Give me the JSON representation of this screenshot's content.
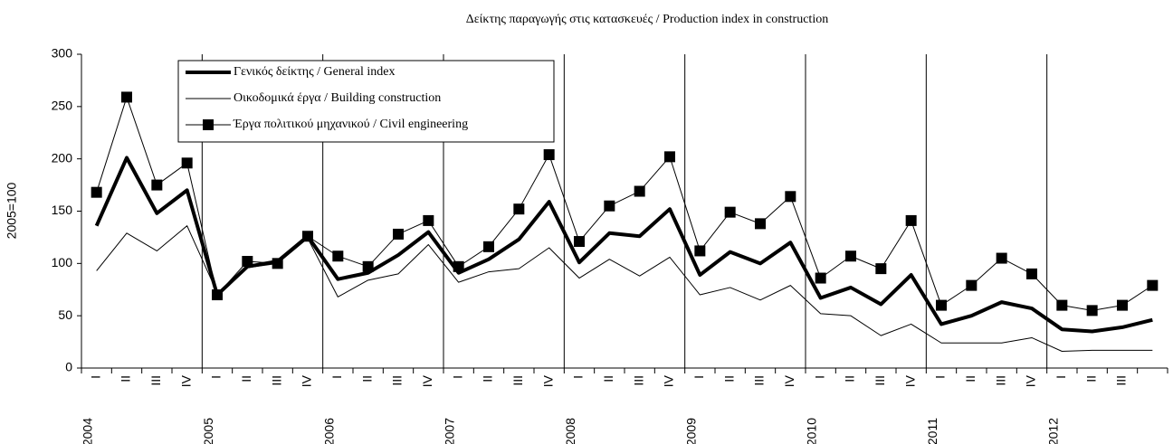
{
  "chart_data": {
    "type": "line",
    "title": "Δείκτης παραγωγής στις κατασκευές /  Production index in construction",
    "y_label": "2005=100",
    "categories": [
      "I",
      "II",
      "III",
      "IV",
      "I",
      "II",
      "III",
      "IV",
      "I",
      "II",
      "III",
      "IV",
      "I",
      "II",
      "III",
      "IV",
      "I",
      "II",
      "III",
      "IV",
      "I",
      "II",
      "III",
      "IV",
      "I",
      "II",
      "III",
      "IV",
      "I",
      "II",
      "III",
      "IV",
      "I",
      "II",
      "III",
      null
    ],
    "years": [
      "2004",
      "2005",
      "2006",
      "2007",
      "2008",
      "2009",
      "2010",
      "2011",
      "2012"
    ],
    "ylim": [
      0,
      300
    ],
    "yticks": [
      0,
      50,
      100,
      150,
      200,
      250,
      300
    ],
    "grid": false,
    "series": [
      {
        "name": "Γενικός δείκτης / General index",
        "color": "#000000",
        "line_width": 4,
        "marker": "none",
        "values": [
          136,
          201,
          148,
          170,
          70,
          97,
          102,
          126,
          85,
          91,
          108,
          130,
          91,
          104,
          123,
          159,
          101,
          129,
          126,
          152,
          89,
          111,
          100,
          120,
          67,
          77,
          61,
          89,
          42,
          50,
          63,
          57,
          37,
          35,
          39,
          46
        ]
      },
      {
        "name": "Οικοδομικά έργα / Building construction",
        "color": "#000000",
        "line_width": 1,
        "marker": "none",
        "values": [
          93,
          129,
          112,
          136,
          72,
          96,
          100,
          124,
          68,
          84,
          90,
          118,
          82,
          92,
          95,
          115,
          86,
          104,
          88,
          106,
          70,
          77,
          65,
          79,
          52,
          50,
          31,
          42,
          24,
          24,
          24,
          29,
          16,
          17,
          17,
          17
        ]
      },
      {
        "name": "Έργα πολιτικού μηχανικού / Civil engineering",
        "color": "#000000",
        "line_width": 1,
        "marker": "square",
        "values": [
          168,
          259,
          175,
          196,
          70,
          102,
          100,
          126,
          107,
          97,
          128,
          141,
          97,
          116,
          152,
          204,
          121,
          155,
          169,
          202,
          112,
          149,
          138,
          164,
          86,
          107,
          95,
          141,
          60,
          79,
          105,
          90,
          60,
          55,
          60,
          79
        ]
      }
    ]
  }
}
